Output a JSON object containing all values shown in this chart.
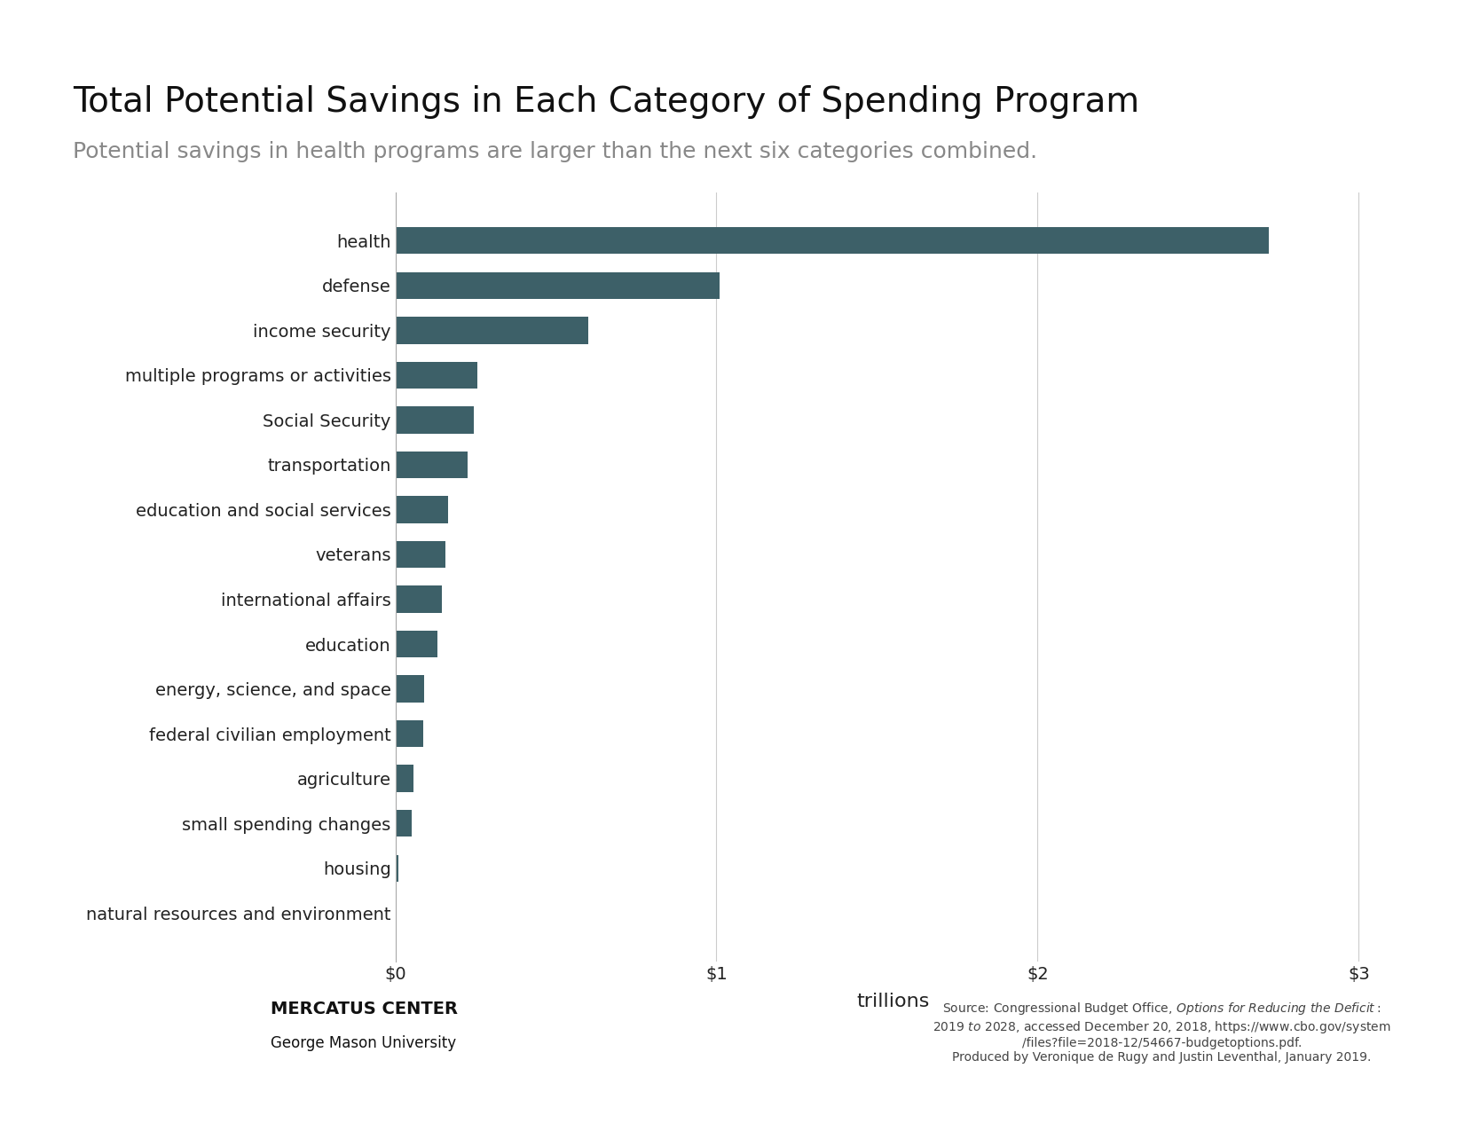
{
  "title": "Total Potential Savings in Each Category of Spending Program",
  "subtitle": "Potential savings in health programs are larger than the next six categories combined.",
  "categories": [
    "health",
    "defense",
    "income security",
    "multiple programs or activities",
    "Social Security",
    "transportation",
    "education and social services",
    "veterans",
    "international affairs",
    "education",
    "energy, science, and space",
    "federal civilian employment",
    "agriculture",
    "small spending changes",
    "housing",
    "natural resources and environment"
  ],
  "values": [
    2.72,
    1.01,
    0.6,
    0.255,
    0.245,
    0.225,
    0.165,
    0.155,
    0.145,
    0.13,
    0.09,
    0.088,
    0.058,
    0.05,
    0.01,
    0.003
  ],
  "bar_color": "#3d6068",
  "background_color": "#ffffff",
  "title_fontsize": 28,
  "subtitle_fontsize": 18,
  "xlabel": "trillions",
  "xlim": [
    0,
    3.1
  ],
  "xticks": [
    0,
    1,
    2,
    3
  ],
  "xticklabels": [
    "$0",
    "$1",
    "$2",
    "$3"
  ],
  "source_text": "Source: Congressional Budget Office, Options for Reducing the Deficit:\n2019 to 2028, accessed December 20, 2018, https://www.cbo.gov/system\n/files?file=2018-12/54667-budgetoptions.pdf.\nProduced by Veronique de Rugy and Justin Leventhal, January 2019.",
  "grid_color": "#cccccc",
  "tick_label_fontsize": 14,
  "axis_label_fontsize": 16
}
